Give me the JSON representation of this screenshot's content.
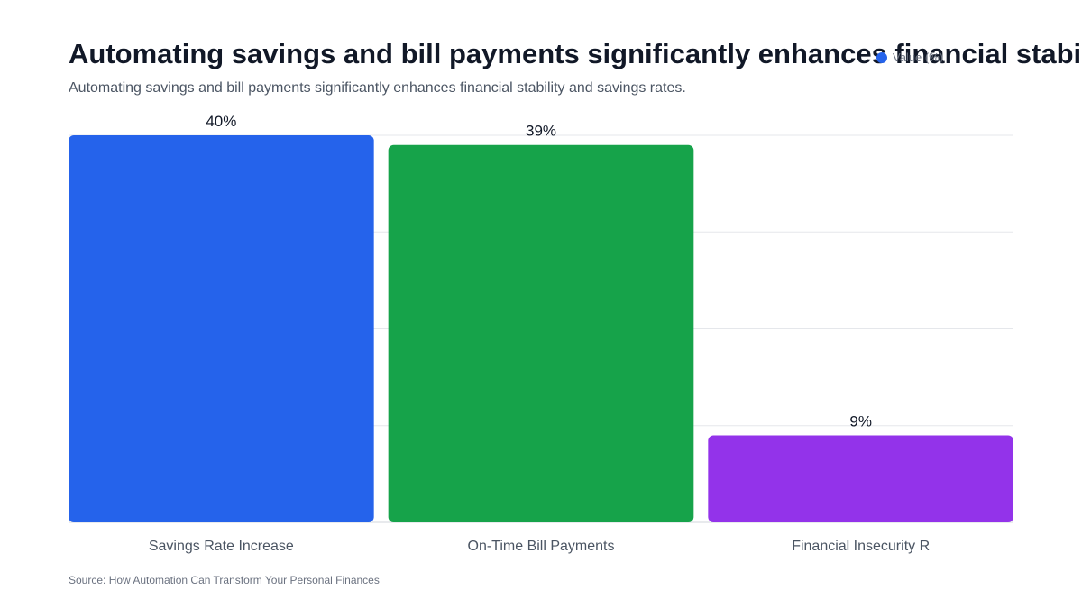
{
  "header": {
    "title": "Automating savings and bill payments significantly enhances financial stability",
    "subtitle": "Automating savings and bill payments significantly enhances financial stability and savings rates."
  },
  "legend": {
    "label": "Value (%)",
    "color": "#2563eb"
  },
  "footer": {
    "source": "Source: How Automation Can Transform Your Personal Finances"
  },
  "chart_data": {
    "type": "bar",
    "categories": [
      "Savings Rate Increase",
      "On-Time Bill Payments",
      "Financial Insecurity R"
    ],
    "series": [
      {
        "name": "Value (%)",
        "values": [
          40,
          39,
          9
        ]
      }
    ],
    "data_labels": [
      "40%",
      "39%",
      "9%"
    ],
    "colors": [
      "#2563eb",
      "#16a34a",
      "#9333ea"
    ],
    "ylim": [
      0,
      40
    ],
    "grid": true,
    "legend_position": "top-right"
  }
}
